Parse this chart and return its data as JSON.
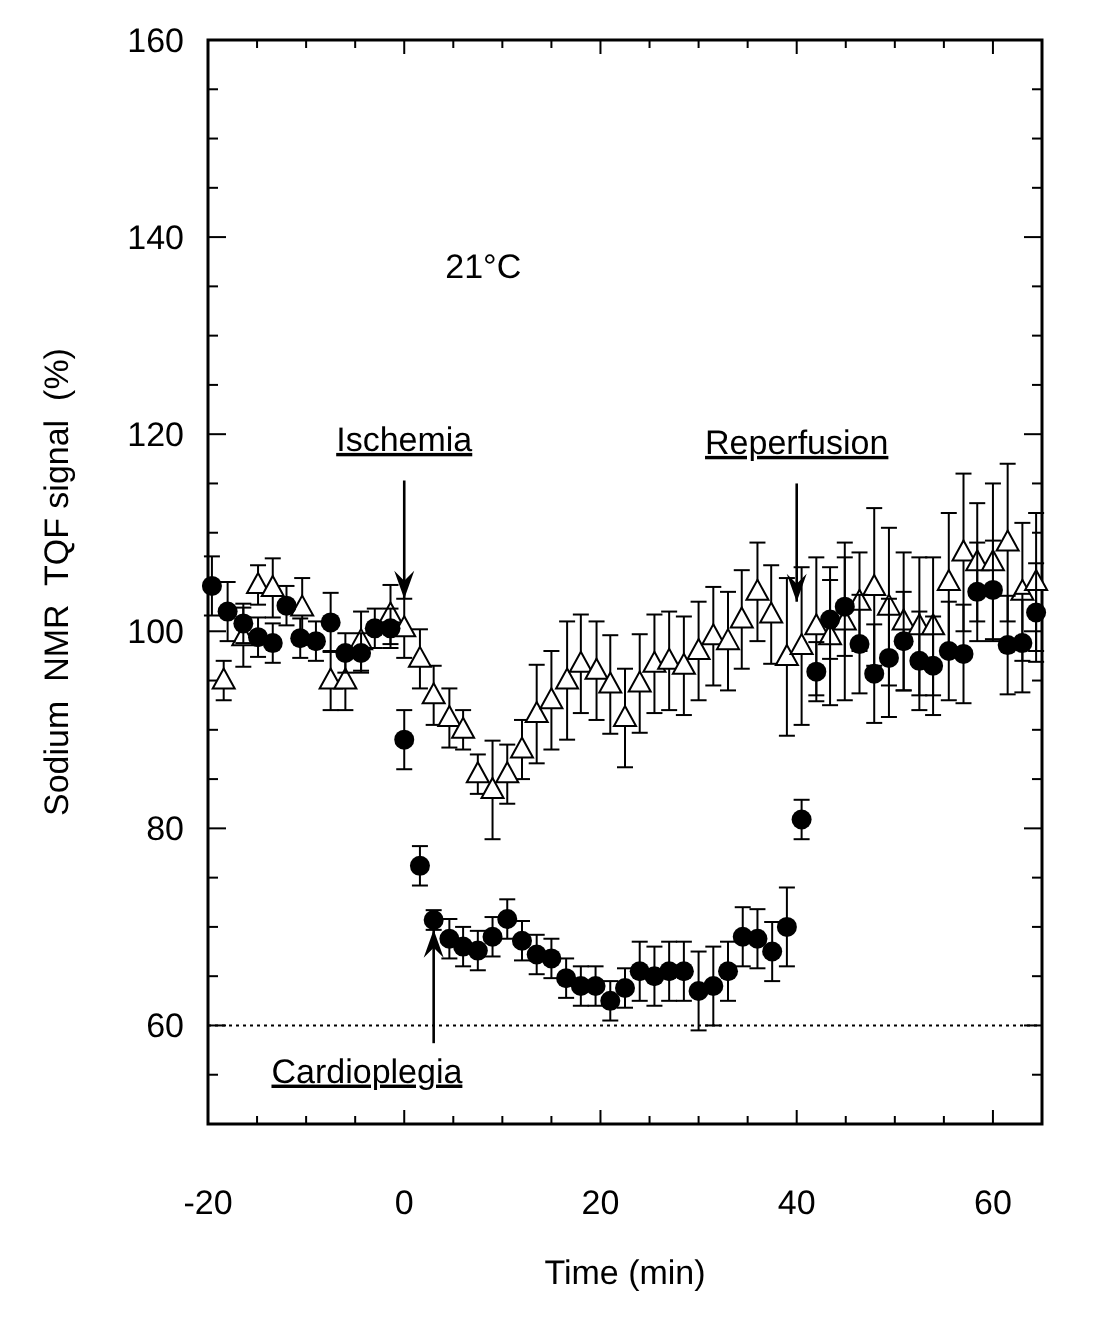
{
  "chart_data": {
    "type": "scatter",
    "xlabel": "Time (min)",
    "ylabel": "Sodium  NMR  TQF signal  (%)",
    "xlim": [
      -20,
      65
    ],
    "ylim": [
      50,
      160
    ],
    "xticks": [
      -20,
      {
        "value": -15,
        "label": null
      },
      {
        "value": -10,
        "label": null
      },
      {
        "value": -5,
        "label": null
      },
      0,
      {
        "value": 5,
        "label": null
      },
      {
        "value": 10,
        "label": null
      },
      {
        "value": 15,
        "label": null
      },
      20,
      {
        "value": 25,
        "label": null
      },
      {
        "value": 30,
        "label": null
      },
      {
        "value": 35,
        "label": null
      },
      40,
      {
        "value": 45,
        "label": null
      },
      {
        "value": 50,
        "label": null
      },
      {
        "value": 55,
        "label": null
      },
      60
    ],
    "yticks": [
      {
        "value": 55,
        "label": null
      },
      60,
      {
        "value": 65,
        "label": null
      },
      {
        "value": 70,
        "label": null
      },
      {
        "value": 75,
        "label": null
      },
      80,
      {
        "value": 85,
        "label": null
      },
      {
        "value": 90,
        "label": null
      },
      {
        "value": 95,
        "label": null
      },
      100,
      {
        "value": 105,
        "label": null
      },
      {
        "value": 110,
        "label": null
      },
      {
        "value": 115,
        "label": null
      },
      120,
      {
        "value": 125,
        "label": null
      },
      {
        "value": 130,
        "label": null
      },
      {
        "value": 135,
        "label": null
      },
      140,
      {
        "value": 145,
        "label": null
      },
      {
        "value": 150,
        "label": null
      },
      {
        "value": 155,
        "label": null
      },
      160
    ],
    "grid": false,
    "series": [
      {
        "color": "#000000",
        "marker": "triangle",
        "x": [
          -18.4,
          -16.4,
          -14.9,
          -13.4,
          -10.4,
          -7.5,
          -6,
          -4.4,
          -1.4,
          0,
          1.6,
          3,
          4.6,
          6,
          7.5,
          9,
          10.5,
          12,
          13.5,
          15,
          16.6,
          18,
          19.6,
          21,
          22.5,
          24,
          25.5,
          27,
          28.5,
          30,
          31.5,
          33,
          34.4,
          36,
          37.4,
          39,
          40.5,
          42,
          43.4,
          44.9,
          46.4,
          47.9,
          49.4,
          50.9,
          52.5,
          53.9,
          55.5,
          57,
          58.4,
          60,
          61.5,
          63,
          64.4
        ],
        "values": [
          95,
          99.4,
          104.7,
          104.4,
          102.4,
          95,
          95,
          99,
          101.7,
          100.3,
          97.2,
          93.5,
          91.2,
          90,
          85.5,
          83.9,
          85.5,
          88,
          91.6,
          93,
          95,
          96.7,
          96,
          94.6,
          91.2,
          94.7,
          96.7,
          97,
          96.5,
          98,
          99.5,
          99,
          101.2,
          104,
          101.7,
          97.4,
          98.5,
          100.5,
          99.5,
          101,
          103,
          104.5,
          102.5,
          101,
          100.5,
          100.5,
          105,
          108,
          107,
          107,
          109,
          104,
          105
        ],
        "errors": [
          2,
          3,
          2,
          3,
          3,
          3,
          3,
          3,
          3,
          3,
          3,
          3,
          3,
          2,
          2,
          5,
          3,
          3,
          5,
          5,
          6,
          5,
          5,
          5,
          5,
          5,
          5,
          5,
          5,
          5,
          5,
          5,
          5,
          5,
          5,
          8,
          8,
          7,
          7,
          8,
          5,
          8,
          8,
          7,
          7,
          7,
          7,
          8,
          6,
          8,
          8,
          7,
          7
        ]
      },
      {
        "color": "#000000",
        "marker": "circle",
        "x": [
          -19.6,
          -18,
          -16.4,
          -14.9,
          -13.4,
          -12,
          -10.6,
          -9,
          -7.5,
          -6,
          -4.4,
          -3,
          -1.4,
          0,
          1.6,
          3,
          4.6,
          6,
          7.5,
          9,
          10.5,
          12,
          13.5,
          15,
          16.5,
          18,
          19.5,
          21,
          22.5,
          24,
          25.5,
          27,
          28.5,
          30,
          31.5,
          33,
          34.5,
          36,
          37.5,
          39,
          40.5,
          42,
          43.4,
          44.9,
          46.4,
          47.9,
          49.4,
          50.9,
          52.5,
          53.9,
          55.5,
          57,
          58.4,
          60,
          61.5,
          63,
          64.4
        ],
        "values": [
          104.6,
          102,
          100.8,
          99.4,
          98.8,
          102.6,
          99.3,
          99,
          100.9,
          97.8,
          97.8,
          100.3,
          100.3,
          89,
          76.2,
          70.7,
          68.8,
          68,
          67.6,
          69,
          70.8,
          68.6,
          67.2,
          66.8,
          64.8,
          64,
          64,
          62.5,
          63.8,
          65.5,
          65,
          65.5,
          65.5,
          63.5,
          64,
          65.5,
          69,
          68.8,
          67.5,
          70,
          80.9,
          95.9,
          101.2,
          102.5,
          98.7,
          95.7,
          97.3,
          99,
          97,
          96.5,
          98,
          97.7,
          104,
          104.2,
          98.6,
          98.8,
          101.9
        ],
        "errors": [
          3,
          3,
          2,
          2,
          2,
          2,
          2,
          2,
          3,
          2,
          2,
          2,
          2,
          3,
          2,
          1,
          2,
          2,
          2,
          2,
          2,
          2,
          2,
          2,
          2,
          2,
          2,
          2,
          2,
          3,
          3,
          3,
          3,
          4,
          4,
          3,
          3,
          3,
          3,
          4,
          2,
          3,
          4,
          5,
          5,
          5,
          6,
          5,
          5,
          5,
          5,
          5,
          5,
          5,
          5,
          5,
          5
        ]
      }
    ],
    "ref_lines": [
      {
        "axis": "y",
        "value": 60,
        "line_style": "dotted",
        "color": "#000000"
      }
    ],
    "annotations": [
      "21°C",
      {
        "text": "Ischemia",
        "x": 0,
        "y": 103.3
      },
      {
        "text": "Reperfusion",
        "x": 40,
        "y": 103
      },
      {
        "text": "Cardioplegia",
        "x": 3,
        "y": 69.7
      }
    ]
  }
}
